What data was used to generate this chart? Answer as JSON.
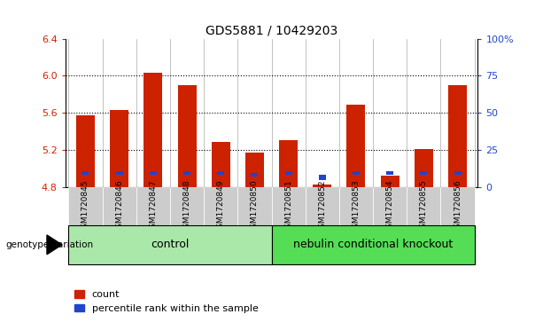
{
  "title": "GDS5881 / 10429203",
  "samples": [
    "GSM1720845",
    "GSM1720846",
    "GSM1720847",
    "GSM1720848",
    "GSM1720849",
    "GSM1720850",
    "GSM1720851",
    "GSM1720852",
    "GSM1720853",
    "GSM1720854",
    "GSM1720855",
    "GSM1720856"
  ],
  "count_values": [
    5.57,
    5.63,
    6.03,
    5.9,
    5.28,
    5.17,
    5.3,
    4.82,
    5.69,
    4.92,
    5.21,
    5.9
  ],
  "percentile_values": [
    4.93,
    4.93,
    4.93,
    4.93,
    4.93,
    4.91,
    4.93,
    4.87,
    4.93,
    4.93,
    4.93,
    4.93
  ],
  "blue_bar_heights": [
    0.04,
    0.04,
    0.04,
    0.04,
    0.04,
    0.04,
    0.04,
    0.06,
    0.04,
    0.04,
    0.04,
    0.04
  ],
  "bar_base": 4.8,
  "ylim": [
    4.8,
    6.4
  ],
  "yticks": [
    4.8,
    5.2,
    5.6,
    6.0,
    6.4
  ],
  "right_yticks": [
    0,
    25,
    50,
    75,
    100
  ],
  "right_ylim": [
    0,
    100
  ],
  "control_samples": 6,
  "control_label": "control",
  "knockout_label": "nebulin conditional knockout",
  "group_label": "genotype/variation",
  "legend_count": "count",
  "legend_percentile": "percentile rank within the sample",
  "red_color": "#cc2200",
  "blue_color": "#2244cc",
  "control_bg": "#aae8aa",
  "knockout_bg": "#55dd55",
  "tick_bg": "#cccccc",
  "dotted_lines": [
    5.2,
    5.6,
    6.0
  ],
  "bar_width": 0.55
}
